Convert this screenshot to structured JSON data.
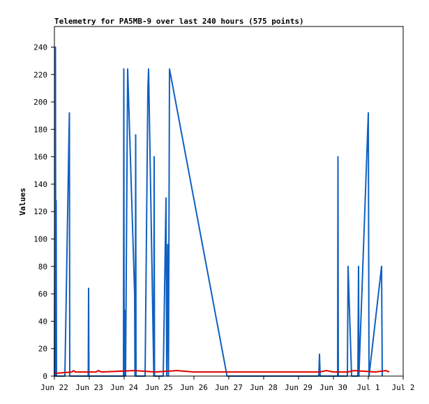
{
  "chart_data": {
    "type": "line",
    "title": "Telemetry for PA5MB-9 over last 240 hours (575 points)",
    "xlabel": "",
    "ylabel": "Values",
    "x_unit": "days",
    "xlim": [
      0,
      10
    ],
    "ylim": [
      0,
      255
    ],
    "x_ticks": [
      {
        "value": 0,
        "label": "Jun 22"
      },
      {
        "value": 1,
        "label": "Jun 23"
      },
      {
        "value": 2,
        "label": "Jun 24"
      },
      {
        "value": 3,
        "label": "Jun 25"
      },
      {
        "value": 4,
        "label": "Jun 26"
      },
      {
        "value": 5,
        "label": "Jun 27"
      },
      {
        "value": 6,
        "label": "Jun 28"
      },
      {
        "value": 7,
        "label": "Jun 29"
      },
      {
        "value": 8,
        "label": "Jun 30"
      },
      {
        "value": 9,
        "label": "Jul 1"
      },
      {
        "value": 10,
        "label": "Jul 2"
      }
    ],
    "y_ticks": [
      0,
      20,
      40,
      60,
      80,
      100,
      120,
      140,
      160,
      180,
      200,
      220,
      240
    ],
    "grid": false,
    "legend": "none",
    "series": [
      {
        "color": "#1060c0",
        "points": [
          [
            0.0,
            0
          ],
          [
            0.01,
            112
          ],
          [
            0.02,
            0
          ],
          [
            0.03,
            240
          ],
          [
            0.04,
            0
          ],
          [
            0.05,
            128
          ],
          [
            0.06,
            0
          ],
          [
            0.3,
            0
          ],
          [
            0.42,
            180
          ],
          [
            0.43,
            192
          ],
          [
            0.44,
            0
          ],
          [
            0.97,
            0
          ],
          [
            0.98,
            64
          ],
          [
            0.99,
            0
          ],
          [
            1.98,
            0
          ],
          [
            1.99,
            224
          ],
          [
            2.0,
            0
          ],
          [
            2.02,
            48
          ],
          [
            2.04,
            0
          ],
          [
            2.1,
            224
          ],
          [
            2.3,
            60
          ],
          [
            2.31,
            0
          ],
          [
            2.32,
            0
          ],
          [
            2.33,
            176
          ],
          [
            2.34,
            0
          ],
          [
            2.6,
            0
          ],
          [
            2.68,
            210
          ],
          [
            2.7,
            224
          ],
          [
            2.85,
            0
          ],
          [
            2.86,
            160
          ],
          [
            2.87,
            0
          ],
          [
            3.12,
            0
          ],
          [
            3.2,
            130
          ],
          [
            3.22,
            0
          ],
          [
            3.25,
            96
          ],
          [
            3.27,
            0
          ],
          [
            3.3,
            224
          ],
          [
            4.95,
            0
          ],
          [
            7.58,
            0
          ],
          [
            7.6,
            16
          ],
          [
            7.62,
            0
          ],
          [
            8.12,
            0
          ],
          [
            8.13,
            160
          ],
          [
            8.14,
            0
          ],
          [
            8.4,
            0
          ],
          [
            8.42,
            80
          ],
          [
            8.52,
            0
          ],
          [
            8.7,
            0
          ],
          [
            8.72,
            80
          ],
          [
            8.73,
            0
          ],
          [
            9.0,
            192
          ],
          [
            9.02,
            0
          ],
          [
            9.38,
            80
          ],
          [
            9.4,
            0
          ]
        ]
      },
      {
        "color": "#e00000",
        "points": [
          [
            0.0,
            2
          ],
          [
            0.5,
            3
          ],
          [
            0.55,
            4
          ],
          [
            0.6,
            3
          ],
          [
            1.2,
            3
          ],
          [
            1.25,
            4
          ],
          [
            1.35,
            3
          ],
          [
            2.3,
            4
          ],
          [
            2.9,
            3
          ],
          [
            3.5,
            4
          ],
          [
            4.0,
            3
          ],
          [
            7.6,
            3
          ],
          [
            7.8,
            4
          ],
          [
            8.0,
            3
          ],
          [
            8.4,
            3
          ],
          [
            8.6,
            4
          ],
          [
            9.2,
            3
          ],
          [
            9.5,
            4
          ],
          [
            9.6,
            3
          ]
        ]
      }
    ]
  }
}
